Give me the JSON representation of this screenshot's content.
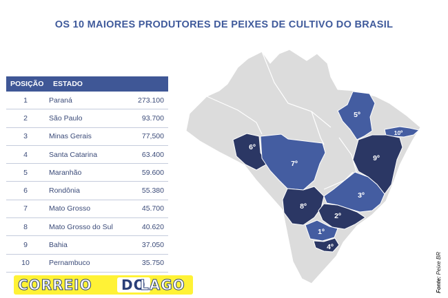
{
  "title": "OS 10 MAIORES PRODUTORES DE PEIXES DE CULTIVO DO BRASIL",
  "table": {
    "headers": [
      "POSIÇÃO",
      "ESTADO",
      ""
    ],
    "rows": [
      {
        "pos": "1",
        "state": "Paraná",
        "value": "273.100"
      },
      {
        "pos": "2",
        "state": "São Paulo",
        "value": "93.700"
      },
      {
        "pos": "3",
        "state": "Minas Gerais",
        "value": "77,500"
      },
      {
        "pos": "4",
        "state": "Santa Catarina",
        "value": "63.400"
      },
      {
        "pos": "5",
        "state": "Maranhão",
        "value": "59.600"
      },
      {
        "pos": "6",
        "state": "Rondônia",
        "value": "55.380"
      },
      {
        "pos": "7",
        "state": "Mato Grosso",
        "value": "45.700"
      },
      {
        "pos": "8",
        "state": "Mato Grosso do Sul",
        "value": "40.620"
      },
      {
        "pos": "9",
        "state": "Bahia",
        "value": "37.050"
      },
      {
        "pos": "10",
        "state": "Pernambuco",
        "value": "35.750"
      }
    ]
  },
  "chart_data": {
    "type": "table",
    "title": "OS 10 MAIORES PRODUTORES DE PEIXES DE CULTIVO DO BRASIL",
    "columns": [
      "POSIÇÃO",
      "ESTADO",
      ""
    ],
    "categories": [
      "Paraná",
      "São Paulo",
      "Minas Gerais",
      "Santa Catarina",
      "Maranhão",
      "Rondônia",
      "Mato Grosso",
      "Mato Grosso do Sul",
      "Bahia",
      "Pernambuco"
    ],
    "values": [
      273100,
      93700,
      77500,
      63400,
      59600,
      55380,
      45700,
      40620,
      37050,
      35750
    ],
    "map_labels": [
      "1º",
      "2º",
      "3º",
      "4º",
      "5º",
      "6º",
      "7º",
      "8º",
      "9º",
      "10º"
    ]
  },
  "colors": {
    "header_bg": "#3f5796",
    "title": "#3f5a9b",
    "rank_dark": "#2b3764",
    "rank_mid": "#445da1",
    "other_states": "#dcdcdc",
    "logo_bg": "#fff236"
  },
  "logo": {
    "word1": "CORREIO",
    "word2": "DO",
    "word3": "LAGO"
  },
  "source": {
    "label": "Fonte:",
    "text": "Peixe BR"
  }
}
